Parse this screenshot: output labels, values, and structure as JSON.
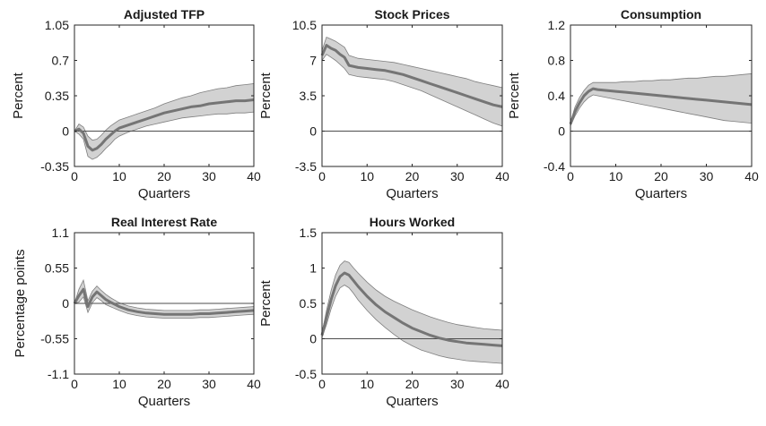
{
  "chart_data": [
    {
      "type": "line",
      "title": "Adjusted TFP",
      "xlabel": "Quarters",
      "ylabel": "Percent",
      "xlim": [
        0,
        40
      ],
      "ylim": [
        -0.35,
        1.05
      ],
      "xticks": [
        "0",
        "10",
        "20",
        "30",
        "40"
      ],
      "yticks": [
        "-0.35",
        "0",
        "0.35",
        "0.7",
        "1.05"
      ],
      "grid": false,
      "series": [
        {
          "x": [
            0,
            1,
            2,
            3,
            4,
            5,
            6,
            7,
            8,
            9,
            10,
            12,
            14,
            16,
            18,
            20,
            22,
            24,
            26,
            28,
            30,
            32,
            34,
            36,
            38,
            40
          ],
          "values": [
            0,
            0.02,
            -0.02,
            -0.15,
            -0.19,
            -0.17,
            -0.13,
            -0.08,
            -0.04,
            0,
            0.03,
            0.06,
            0.09,
            0.12,
            0.15,
            0.18,
            0.2,
            0.22,
            0.24,
            0.25,
            0.27,
            0.28,
            0.29,
            0.3,
            0.3,
            0.31
          ],
          "lower": [
            0,
            -0.03,
            -0.08,
            -0.25,
            -0.28,
            -0.26,
            -0.22,
            -0.17,
            -0.13,
            -0.08,
            -0.05,
            -0.01,
            0.02,
            0.05,
            0.07,
            0.09,
            0.11,
            0.13,
            0.14,
            0.15,
            0.16,
            0.17,
            0.17,
            0.18,
            0.18,
            0.19
          ],
          "upper": [
            0,
            0.07,
            0.04,
            -0.05,
            -0.09,
            -0.08,
            -0.04,
            0.01,
            0.05,
            0.08,
            0.11,
            0.14,
            0.17,
            0.2,
            0.23,
            0.27,
            0.3,
            0.33,
            0.35,
            0.38,
            0.4,
            0.42,
            0.43,
            0.45,
            0.46,
            0.47
          ]
        }
      ]
    },
    {
      "type": "line",
      "title": "Stock Prices",
      "xlabel": "Quarters",
      "ylabel": "Percent",
      "xlim": [
        0,
        40
      ],
      "ylim": [
        -3.5,
        10.5
      ],
      "xticks": [
        "0",
        "10",
        "20",
        "30",
        "40"
      ],
      "yticks": [
        "-3.5",
        "0",
        "3.5",
        "7",
        "10.5"
      ],
      "grid": false,
      "series": [
        {
          "x": [
            0,
            1,
            2,
            3,
            4,
            5,
            6,
            8,
            10,
            12,
            14,
            16,
            18,
            20,
            22,
            24,
            26,
            28,
            30,
            32,
            34,
            36,
            38,
            40
          ],
          "values": [
            7.5,
            8.5,
            8.2,
            8.0,
            7.6,
            7.3,
            6.5,
            6.3,
            6.2,
            6.1,
            6.0,
            5.8,
            5.6,
            5.3,
            5.0,
            4.7,
            4.4,
            4.1,
            3.8,
            3.5,
            3.2,
            2.9,
            2.6,
            2.4
          ],
          "lower": [
            7.0,
            7.6,
            7.3,
            7.0,
            6.6,
            6.2,
            5.6,
            5.4,
            5.3,
            5.2,
            5.1,
            4.9,
            4.6,
            4.3,
            4.0,
            3.6,
            3.2,
            2.8,
            2.4,
            2.0,
            1.6,
            1.2,
            0.8,
            0.5
          ],
          "upper": [
            8.0,
            9.3,
            9.1,
            8.9,
            8.6,
            8.3,
            7.5,
            7.2,
            7.1,
            7.0,
            6.9,
            6.8,
            6.6,
            6.4,
            6.2,
            6.0,
            5.8,
            5.6,
            5.4,
            5.2,
            4.9,
            4.7,
            4.5,
            4.3
          ]
        }
      ]
    },
    {
      "type": "line",
      "title": "Consumption",
      "xlabel": "Quarters",
      "ylabel": "Percent",
      "xlim": [
        0,
        40
      ],
      "ylim": [
        -0.4,
        1.2
      ],
      "xticks": [
        "0",
        "10",
        "20",
        "30",
        "40"
      ],
      "yticks": [
        "-0.4",
        "0",
        "0.4",
        "0.8",
        "1.2"
      ],
      "grid": false,
      "series": [
        {
          "x": [
            0,
            1,
            2,
            3,
            4,
            5,
            6,
            8,
            10,
            12,
            14,
            16,
            18,
            20,
            22,
            24,
            26,
            28,
            30,
            32,
            34,
            36,
            38,
            40
          ],
          "values": [
            0.08,
            0.22,
            0.32,
            0.4,
            0.45,
            0.48,
            0.47,
            0.46,
            0.45,
            0.44,
            0.43,
            0.42,
            0.41,
            0.4,
            0.39,
            0.38,
            0.37,
            0.36,
            0.35,
            0.34,
            0.33,
            0.32,
            0.31,
            0.3
          ],
          "lower": [
            0.06,
            0.17,
            0.26,
            0.33,
            0.38,
            0.41,
            0.4,
            0.38,
            0.36,
            0.34,
            0.32,
            0.3,
            0.28,
            0.26,
            0.24,
            0.22,
            0.2,
            0.18,
            0.16,
            0.14,
            0.12,
            0.11,
            0.1,
            0.09
          ],
          "upper": [
            0.1,
            0.27,
            0.38,
            0.46,
            0.52,
            0.55,
            0.55,
            0.55,
            0.55,
            0.56,
            0.56,
            0.57,
            0.57,
            0.58,
            0.58,
            0.59,
            0.6,
            0.6,
            0.61,
            0.62,
            0.62,
            0.63,
            0.64,
            0.65
          ]
        }
      ]
    },
    {
      "type": "line",
      "title": "Real Interest Rate",
      "xlabel": "Quarters",
      "ylabel": "Percentage points",
      "xlim": [
        0,
        40
      ],
      "ylim": [
        -1.1,
        1.1
      ],
      "xticks": [
        "0",
        "10",
        "20",
        "30",
        "40"
      ],
      "yticks": [
        "-1.1",
        "-0.55",
        "0",
        "0.55",
        "1.1"
      ],
      "grid": false,
      "series": [
        {
          "x": [
            0,
            1,
            2,
            3,
            4,
            5,
            6,
            7,
            8,
            10,
            12,
            14,
            16,
            18,
            20,
            22,
            24,
            26,
            28,
            30,
            32,
            34,
            36,
            38,
            40
          ],
          "values": [
            0,
            0.12,
            0.22,
            -0.05,
            0.1,
            0.18,
            0.12,
            0.06,
            0.02,
            -0.05,
            -0.1,
            -0.13,
            -0.15,
            -0.16,
            -0.17,
            -0.17,
            -0.17,
            -0.17,
            -0.16,
            -0.16,
            -0.15,
            -0.14,
            -0.13,
            -0.12,
            -0.11
          ],
          "lower": [
            0,
            0.02,
            0.1,
            -0.14,
            0.01,
            0.09,
            0.04,
            -0.02,
            -0.05,
            -0.11,
            -0.16,
            -0.19,
            -0.21,
            -0.22,
            -0.23,
            -0.23,
            -0.23,
            -0.23,
            -0.22,
            -0.22,
            -0.21,
            -0.2,
            -0.19,
            -0.18,
            -0.17
          ],
          "upper": [
            0,
            0.22,
            0.36,
            0.04,
            0.19,
            0.27,
            0.2,
            0.14,
            0.09,
            0.01,
            -0.04,
            -0.07,
            -0.09,
            -0.1,
            -0.11,
            -0.11,
            -0.11,
            -0.11,
            -0.1,
            -0.1,
            -0.09,
            -0.08,
            -0.07,
            -0.06,
            -0.05
          ]
        }
      ]
    },
    {
      "type": "line",
      "title": "Hours Worked",
      "xlabel": "Quarters",
      "ylabel": "Percent",
      "xlim": [
        0,
        40
      ],
      "ylim": [
        -0.5,
        1.5
      ],
      "xticks": [
        "0",
        "10",
        "20",
        "30",
        "40"
      ],
      "yticks": [
        "-0.5",
        "0",
        "0.5",
        "1",
        "1.5"
      ],
      "grid": false,
      "series": [
        {
          "x": [
            0,
            1,
            2,
            3,
            4,
            5,
            6,
            7,
            8,
            10,
            12,
            14,
            16,
            18,
            20,
            22,
            24,
            26,
            28,
            30,
            32,
            34,
            36,
            38,
            40
          ],
          "values": [
            0.05,
            0.3,
            0.55,
            0.75,
            0.88,
            0.93,
            0.9,
            0.82,
            0.74,
            0.6,
            0.48,
            0.38,
            0.3,
            0.22,
            0.15,
            0.1,
            0.05,
            0.01,
            -0.02,
            -0.04,
            -0.06,
            -0.07,
            -0.08,
            -0.09,
            -0.1
          ],
          "lower": [
            0.02,
            0.2,
            0.42,
            0.6,
            0.72,
            0.76,
            0.72,
            0.64,
            0.55,
            0.4,
            0.27,
            0.16,
            0.06,
            -0.03,
            -0.1,
            -0.16,
            -0.2,
            -0.24,
            -0.27,
            -0.29,
            -0.31,
            -0.32,
            -0.33,
            -0.34,
            -0.35
          ],
          "upper": [
            0.08,
            0.4,
            0.68,
            0.9,
            1.04,
            1.1,
            1.08,
            1.0,
            0.93,
            0.8,
            0.69,
            0.6,
            0.53,
            0.47,
            0.41,
            0.36,
            0.31,
            0.27,
            0.23,
            0.2,
            0.18,
            0.16,
            0.14,
            0.13,
            0.12
          ]
        }
      ]
    }
  ]
}
